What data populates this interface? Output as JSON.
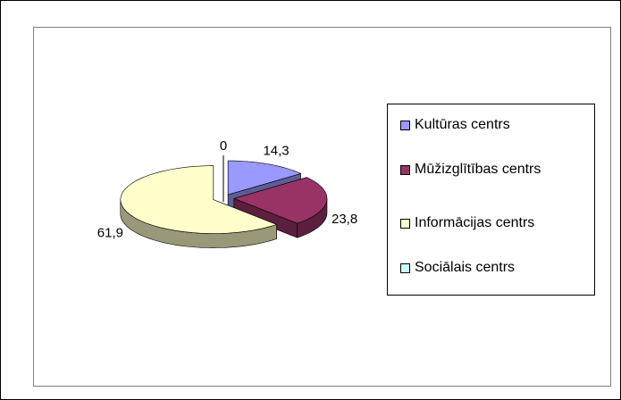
{
  "chart_data": {
    "type": "pie3d",
    "categories": [
      "Kultūras centrs",
      "Mūžizglītības centrs",
      "Informācijas centrs",
      "Sociālais centrs"
    ],
    "values": [
      14.3,
      23.8,
      61.9,
      0
    ],
    "value_labels": [
      "14,3",
      "23,8",
      "61,9",
      "0"
    ],
    "colors": [
      "#9999ff",
      "#993366",
      "#ffffcc",
      "#ccffff"
    ],
    "legend": "right"
  }
}
